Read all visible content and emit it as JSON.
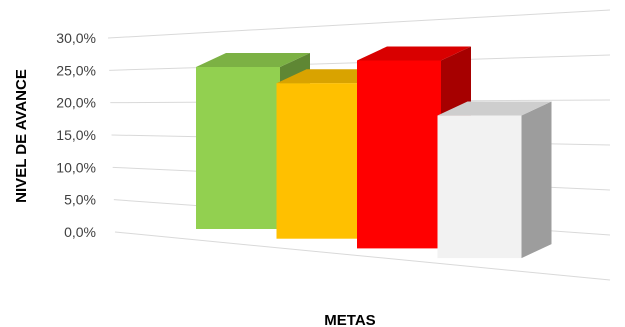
{
  "chart_data": {
    "type": "bar",
    "title": "",
    "xlabel": "METAS",
    "ylabel": "NIVEL DE AVANCE",
    "ylim": [
      0,
      30
    ],
    "yticks": [
      "0,0%",
      "5,0%",
      "10,0%",
      "15,0%",
      "20,0%",
      "25,0%",
      "30,0%"
    ],
    "grid": true,
    "legend": "none",
    "categories": [
      "",
      "",
      "",
      ""
    ],
    "values": [
      25.0,
      24.0,
      29.0,
      22.0
    ],
    "colors": [
      "#92D050",
      "#FFC000",
      "#FF0000",
      "#F2F2F2"
    ]
  }
}
